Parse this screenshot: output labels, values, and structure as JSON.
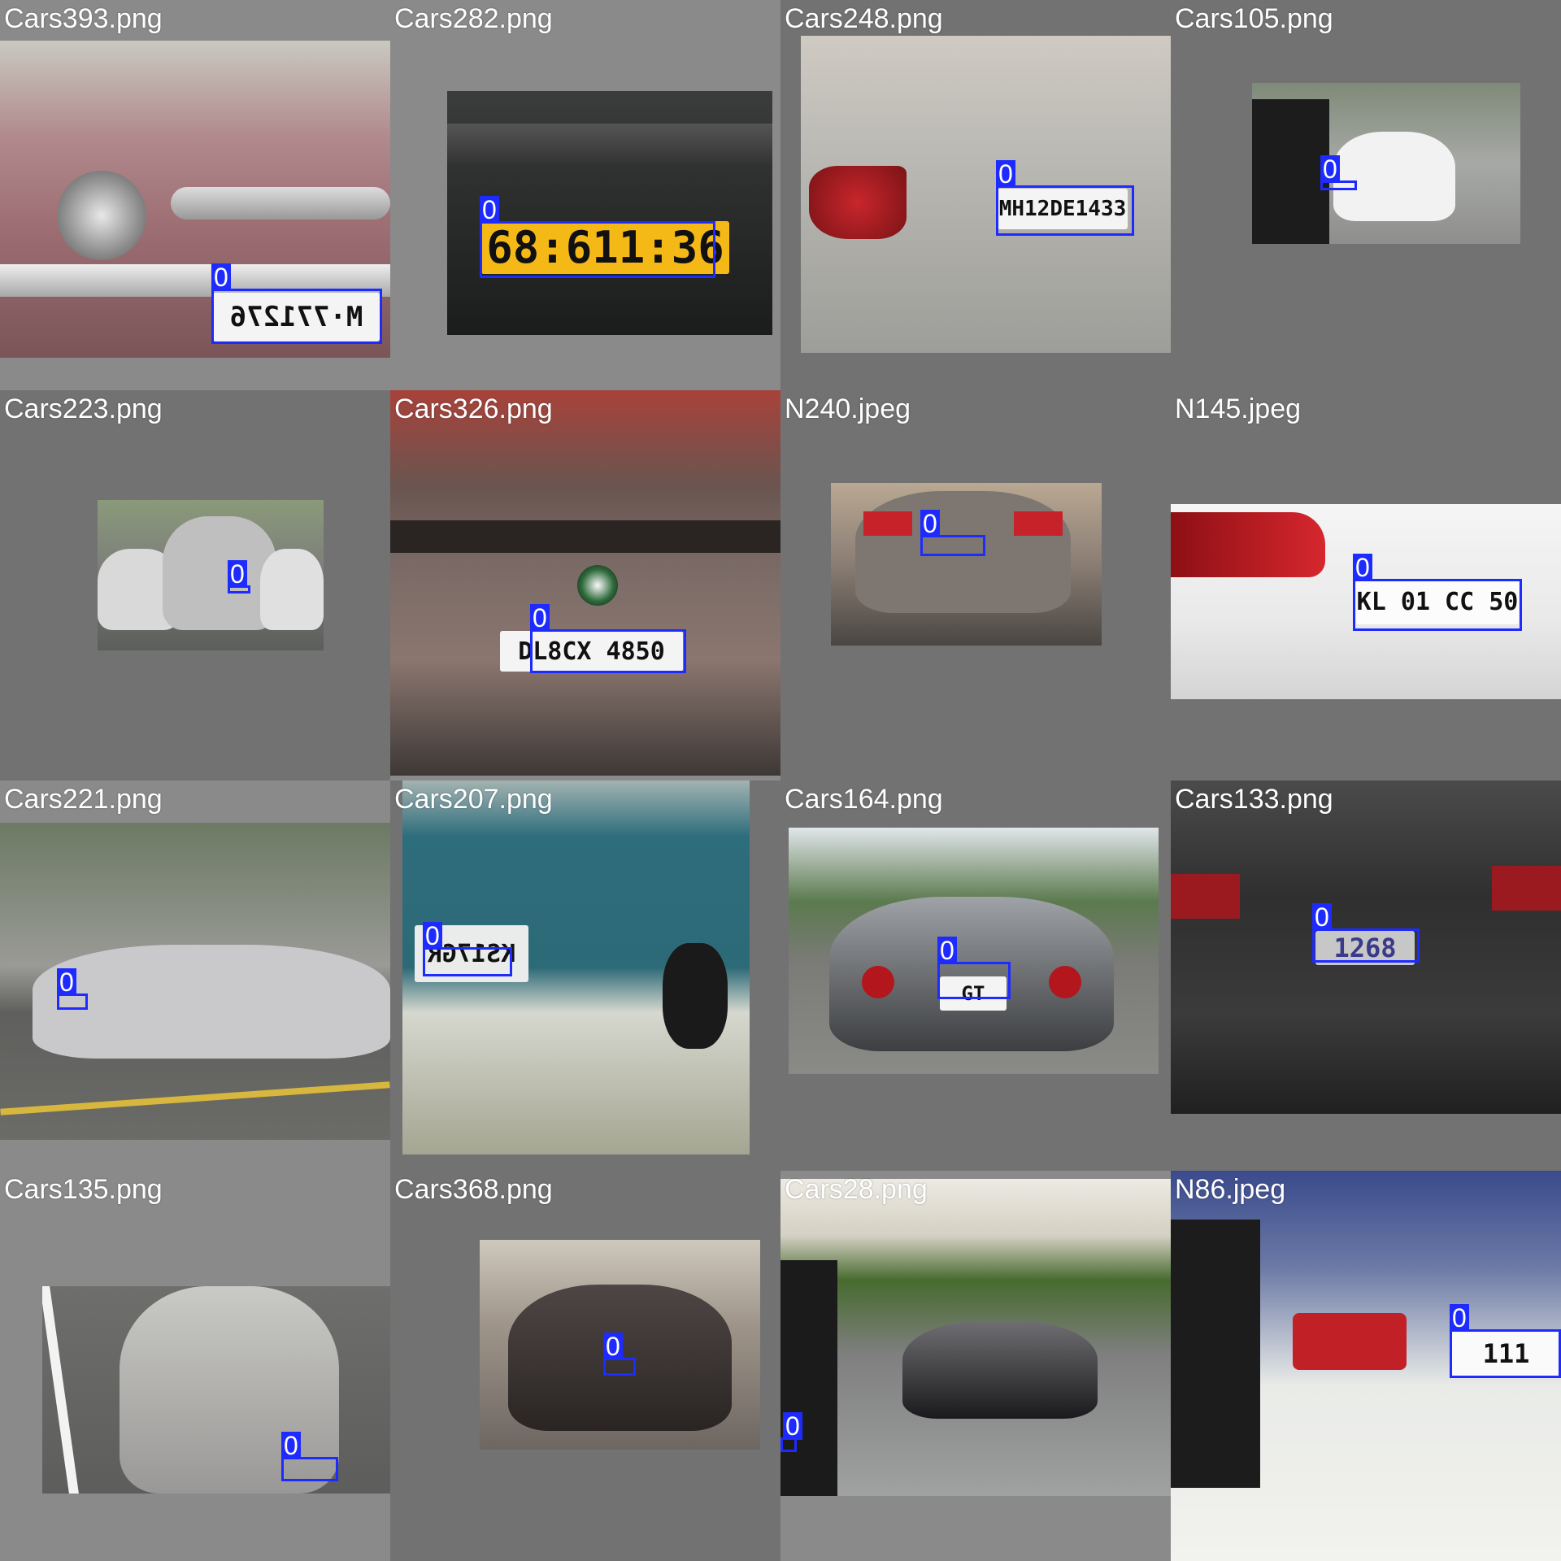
{
  "tiles": [
    {
      "file": "Cars393.png",
      "label": "0"
    },
    {
      "file": "Cars282.png",
      "label": "0",
      "plate": "68:611:36"
    },
    {
      "file": "Cars248.png",
      "label": "0",
      "plate": "MH12DE1433"
    },
    {
      "file": "Cars105.png",
      "label": "0"
    },
    {
      "file": "Cars223.png",
      "label": "0"
    },
    {
      "file": "Cars326.png",
      "label": "0",
      "plate": "DL8CX 4850"
    },
    {
      "file": "N240.jpeg",
      "label": "0"
    },
    {
      "file": "N145.jpeg",
      "label": "0",
      "plate": "KL 01 CC 50"
    },
    {
      "file": "Cars221.png",
      "label": "0"
    },
    {
      "file": "Cars207.png",
      "label": "0",
      "plate": "KS17GR"
    },
    {
      "file": "Cars164.png",
      "label": "0",
      "plate": "GT"
    },
    {
      "file": "Cars133.png",
      "label": "0",
      "plate": "1268"
    },
    {
      "file": "Cars135.png",
      "label": "0"
    },
    {
      "file": "Cars368.png",
      "label": "0"
    },
    {
      "file": "Cars28.png",
      "label": "0"
    },
    {
      "file": "N86.jpeg",
      "label": "0"
    }
  ],
  "colors": {
    "box": "#1e2bff",
    "tile_bg": "#727272",
    "tile_bg_alt": "#8a8a8a"
  }
}
